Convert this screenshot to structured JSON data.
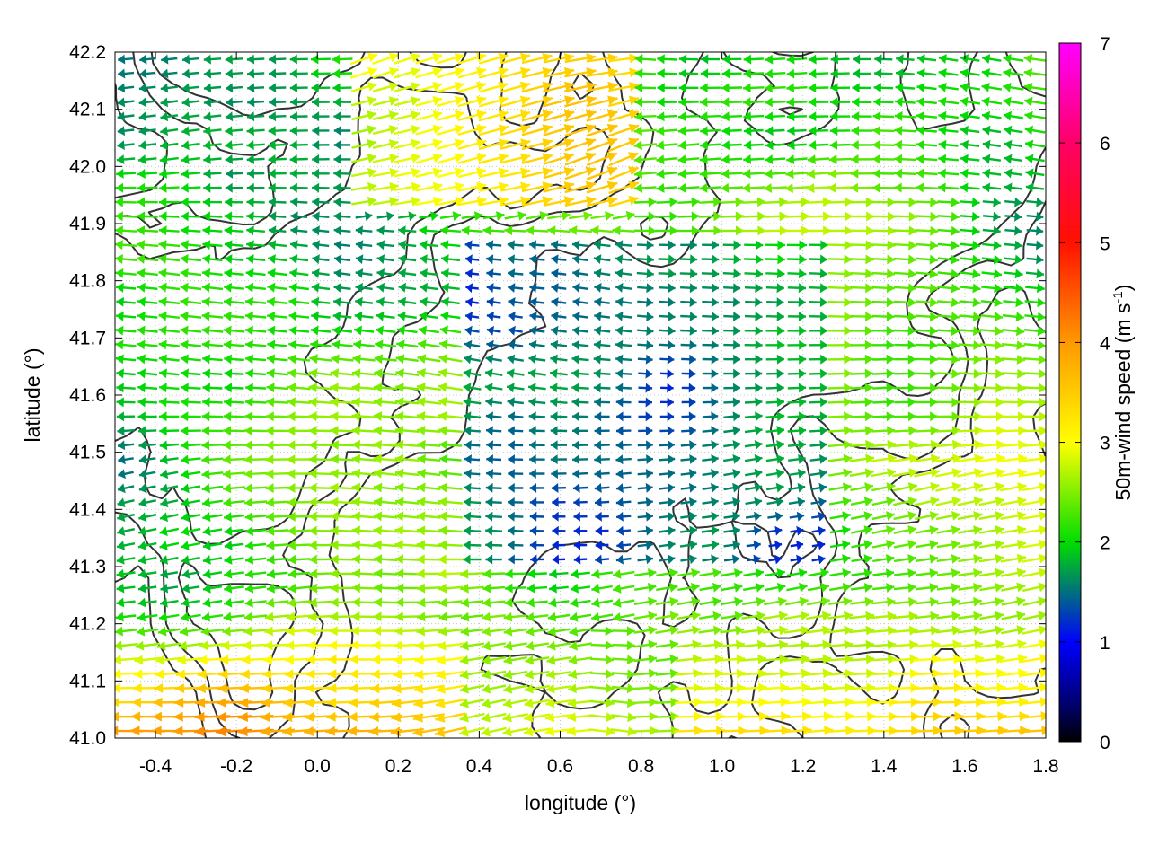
{
  "chart_data": {
    "type": "vector-field",
    "xlabel": "longitude (°)",
    "ylabel": "latitude (°)",
    "colorbar_label": "50m-wind speed (m s",
    "colorbar_label_sup": "-1",
    "colorbar_label_end": ")",
    "xlim": [
      -0.5,
      1.8
    ],
    "ylim": [
      41.0,
      42.2
    ],
    "xticks": [
      "-0.4",
      "-0.2",
      "0.0",
      "0.2",
      "0.4",
      "0.6",
      "0.8",
      "1.0",
      "1.2",
      "1.4",
      "1.6",
      "1.8"
    ],
    "xtick_values": [
      -0.4,
      -0.2,
      0.0,
      0.2,
      0.4,
      0.6,
      0.8,
      1.0,
      1.2,
      1.4,
      1.6,
      1.8
    ],
    "yticks": [
      "41.0",
      "41.1",
      "41.2",
      "41.3",
      "41.4",
      "41.5",
      "41.6",
      "41.7",
      "41.8",
      "41.9",
      "42.0",
      "42.1",
      "42.2"
    ],
    "ytick_values": [
      41.0,
      41.1,
      41.2,
      41.3,
      41.4,
      41.5,
      41.6,
      41.7,
      41.8,
      41.9,
      42.0,
      42.1,
      42.2
    ],
    "colorbar_ticks": [
      "0",
      "1",
      "2",
      "3",
      "4",
      "5",
      "6",
      "7"
    ],
    "colorbar_range": [
      0,
      7
    ],
    "colorbar_colors": [
      "#000000",
      "#0000ff",
      "#00dd00",
      "#ffff00",
      "#ff8800",
      "#ff0000",
      "#ff00ff"
    ],
    "grid": "dotted",
    "contour_color": "#333333",
    "arrow_rows": 48,
    "arrow_cols": 43
  }
}
